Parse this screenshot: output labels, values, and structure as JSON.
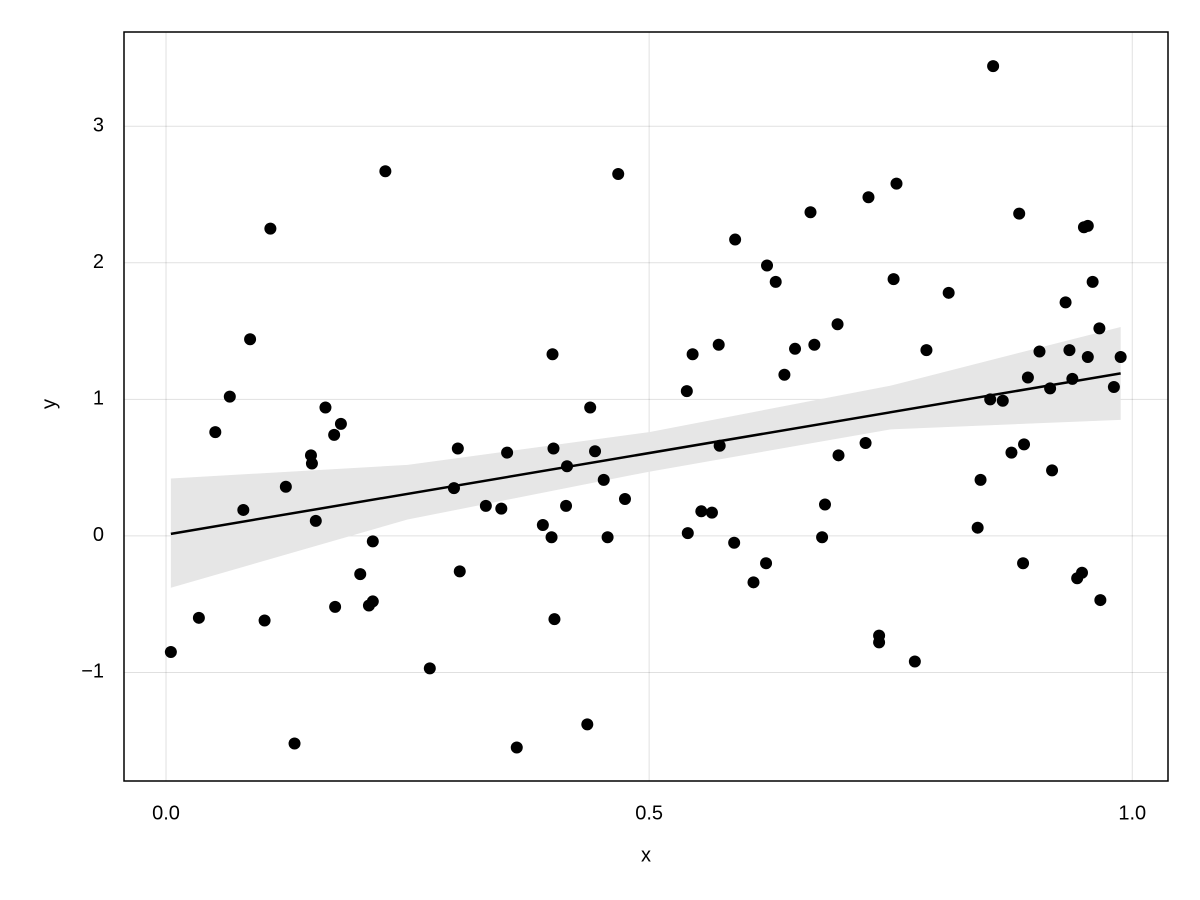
{
  "chart_data": {
    "type": "scatter",
    "xlabel": "x",
    "ylabel": "y",
    "grid": true,
    "xlim": [
      -0.0435,
      1.037
    ],
    "ylim": [
      -1.795,
      3.69
    ],
    "xticks": [
      {
        "value": 0,
        "label": "0.0"
      },
      {
        "value": 0.5,
        "label": "0.5"
      },
      {
        "value": 1,
        "label": "1.0"
      }
    ],
    "yticks": [
      {
        "value": -1,
        "label": "−1"
      },
      0,
      1,
      2,
      3
    ],
    "series": [
      {
        "type": "band",
        "color": "#e6e6e6",
        "x": [
          0.005,
          0.25,
          0.5,
          0.75,
          0.988
        ],
        "lower": [
          -0.38,
          0.12,
          0.47,
          0.78,
          0.85
        ],
        "upper": [
          0.42,
          0.52,
          0.76,
          1.1,
          1.53
        ]
      },
      {
        "type": "line",
        "color": "#000000",
        "x": [
          0.005,
          0.988
        ],
        "values": [
          0.015,
          1.19
        ]
      },
      {
        "type": "scatter",
        "color": "#000000",
        "x": [
          0.005,
          0.034,
          0.051,
          0.066,
          0.08,
          0.087,
          0.102,
          0.108,
          0.124,
          0.133,
          0.15,
          0.151,
          0.155,
          0.165,
          0.174,
          0.175,
          0.181,
          0.201,
          0.21,
          0.214,
          0.214,
          0.227,
          0.273,
          0.298,
          0.302,
          0.304,
          0.331,
          0.347,
          0.353,
          0.363,
          0.39,
          0.399,
          0.4,
          0.401,
          0.402,
          0.414,
          0.415,
          0.436,
          0.439,
          0.444,
          0.453,
          0.457,
          0.468,
          0.475,
          0.539,
          0.54,
          0.545,
          0.554,
          0.565,
          0.572,
          0.573,
          0.588,
          0.589,
          0.608,
          0.621,
          0.622,
          0.631,
          0.64,
          0.651,
          0.667,
          0.671,
          0.679,
          0.682,
          0.695,
          0.696,
          0.724,
          0.727,
          0.738,
          0.738,
          0.753,
          0.756,
          0.775,
          0.787,
          0.81,
          0.84,
          0.843,
          0.853,
          0.856,
          0.866,
          0.875,
          0.883,
          0.887,
          0.888,
          0.892,
          0.904,
          0.915,
          0.917,
          0.931,
          0.935,
          0.938,
          0.943,
          0.948,
          0.95,
          0.954,
          0.954,
          0.959,
          0.966,
          0.967,
          0.981,
          0.988
        ],
        "values": [
          -0.85,
          -0.6,
          0.76,
          1.02,
          0.19,
          1.44,
          -0.62,
          2.25,
          0.36,
          -1.52,
          0.59,
          0.53,
          0.11,
          0.94,
          0.74,
          -0.52,
          0.82,
          -0.28,
          -0.51,
          -0.48,
          -0.04,
          2.67,
          -0.97,
          0.35,
          0.64,
          -0.26,
          0.22,
          0.2,
          0.61,
          -1.55,
          0.08,
          -0.01,
          1.33,
          0.64,
          -0.61,
          0.22,
          0.51,
          -1.38,
          0.94,
          0.62,
          0.41,
          -0.01,
          2.65,
          0.27,
          1.06,
          0.02,
          1.33,
          0.18,
          0.17,
          1.4,
          0.66,
          -0.05,
          2.17,
          -0.34,
          -0.2,
          1.98,
          1.86,
          1.18,
          1.37,
          2.37,
          1.4,
          -0.01,
          0.23,
          1.55,
          0.59,
          0.68,
          2.48,
          -0.73,
          -0.78,
          1.88,
          2.58,
          -0.92,
          1.36,
          1.78,
          0.06,
          0.41,
          1.0,
          3.44,
          0.99,
          0.61,
          2.36,
          -0.2,
          0.67,
          1.16,
          1.35,
          1.08,
          0.48,
          1.71,
          1.36,
          1.15,
          -0.31,
          -0.27,
          2.26,
          2.27,
          1.31,
          1.86,
          1.52,
          -0.47,
          1.09,
          1.31
        ]
      }
    ]
  }
}
